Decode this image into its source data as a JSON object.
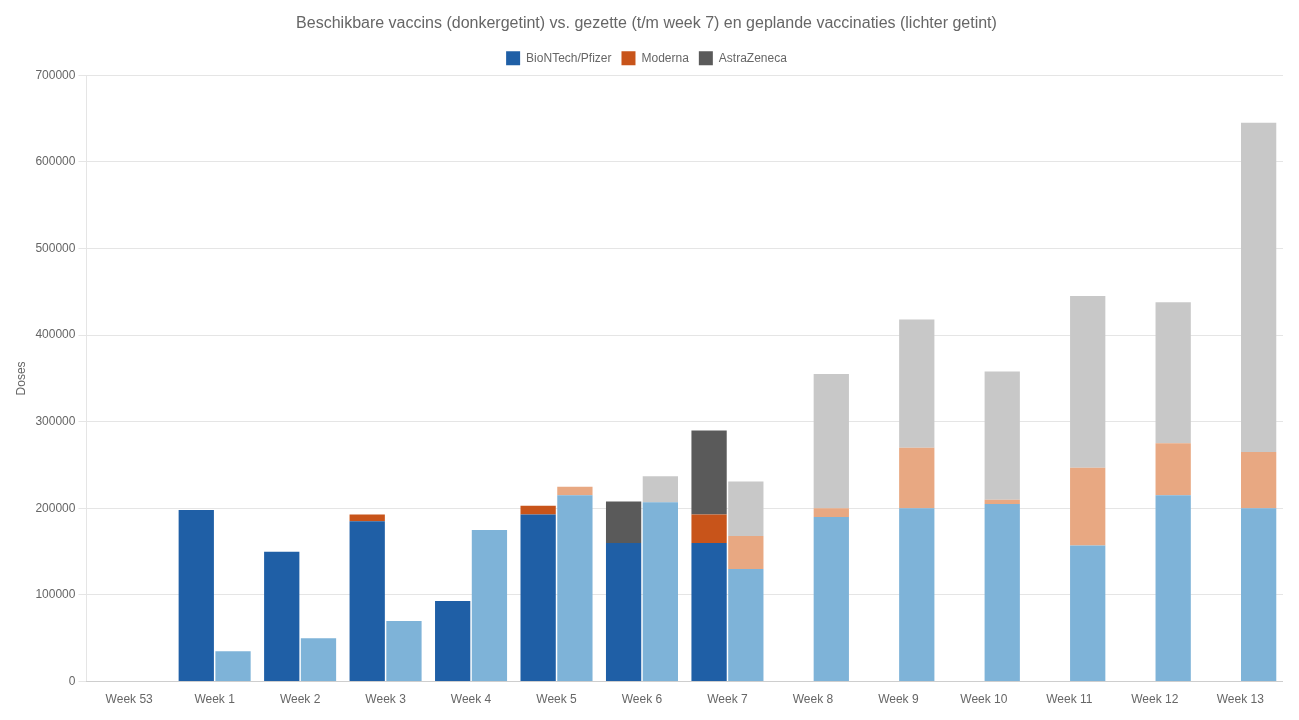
{
  "chart_data": {
    "type": "bar",
    "title": "Beschikbare vaccins (donkergetint) vs. gezette (t/m week 7) en geplande vaccinaties (lichter getint)",
    "ylabel": "Doses",
    "categories": [
      "Week 53",
      "Week 1",
      "Week 2",
      "Week 3",
      "Week 4",
      "Week 5",
      "Week 6",
      "Week 7",
      "Week 8",
      "Week 9",
      "Week 10",
      "Week 11",
      "Week 12",
      "Week 13"
    ],
    "series": [
      {
        "name": "BioNTech/Pfizer",
        "color": "#1F5FA6",
        "values": [
          0,
          198000,
          150000,
          185000,
          93000,
          193000,
          160000,
          160000,
          0,
          0,
          0,
          0,
          0,
          0
        ]
      },
      {
        "name": "Moderna",
        "color": "#C8541A",
        "values": [
          0,
          0,
          0,
          8000,
          0,
          10000,
          0,
          33000,
          0,
          0,
          0,
          0,
          0,
          0
        ]
      },
      {
        "name": "AstraZeneca",
        "color": "#5A5A5A",
        "values": [
          0,
          0,
          0,
          0,
          0,
          0,
          48000,
          97000,
          0,
          0,
          0,
          0,
          0,
          0
        ]
      },
      {
        "name": "BioNTech/Pfizer",
        "color": "#7EB3D8",
        "values": [
          0,
          35000,
          50000,
          70000,
          175000,
          215000,
          207000,
          130000,
          190000,
          200000,
          205000,
          157000,
          215000,
          200000
        ]
      },
      {
        "name": "Moderna",
        "color": "#E8A882",
        "values": [
          0,
          0,
          0,
          0,
          0,
          10000,
          0,
          38000,
          10000,
          70000,
          5000,
          90000,
          60000,
          65000
        ]
      },
      {
        "name": "AstraZeneca",
        "color": "#C8C8C8",
        "values": [
          0,
          0,
          0,
          0,
          0,
          0,
          30000,
          63000,
          155000,
          148000,
          148000,
          198000,
          163000,
          380000
        ]
      }
    ],
    "stacked": true,
    "ylim": [
      0,
      700000
    ],
    "yticks": [
      0,
      100000,
      200000,
      300000,
      400000,
      500000,
      600000,
      700000
    ],
    "grid": true,
    "legend": "top"
  }
}
